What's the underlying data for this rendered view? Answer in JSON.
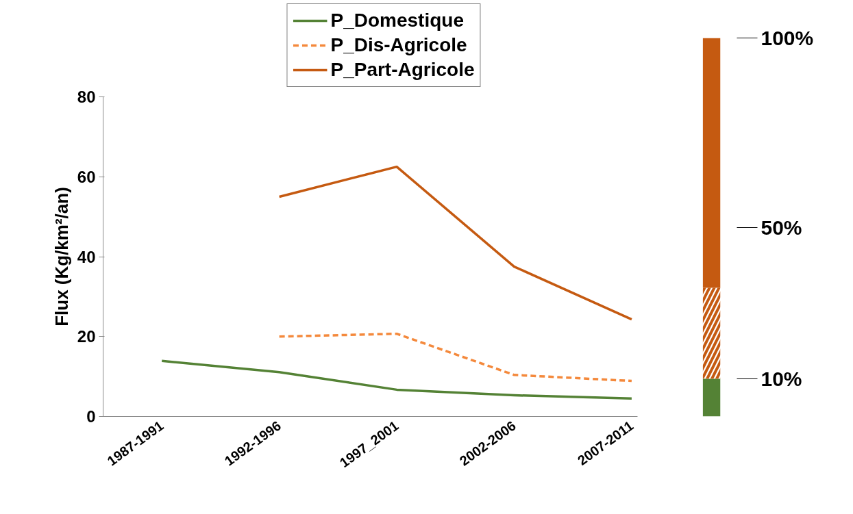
{
  "chart_data": [
    {
      "type": "line",
      "ylabel": "Flux (Kg/km²/an)",
      "categories": [
        "1987-1991",
        "1992-1996",
        "1997_2001",
        "2002-2006",
        "2007-2011"
      ],
      "series": [
        {
          "name": "P_Domestique",
          "color": "#548235",
          "line_style": "solid",
          "values": [
            13.9,
            11.1,
            6.7,
            5.3,
            4.5
          ]
        },
        {
          "name": "P_Dis-Agricole",
          "color": "#f4893c",
          "line_style": "dashed",
          "values": [
            null,
            20.0,
            20.7,
            10.4,
            8.9
          ]
        },
        {
          "name": "P_Part-Agricole",
          "color": "#c55a11",
          "line_style": "solid",
          "values": [
            null,
            55.0,
            62.5,
            37.5,
            24.3
          ]
        }
      ],
      "ylim": [
        0,
        80
      ],
      "yticks": [
        0,
        20,
        40,
        60,
        80
      ],
      "grid": false,
      "legend": "top"
    },
    {
      "type": "bar",
      "stacked": true,
      "categories": [
        null
      ],
      "series": [
        {
          "color": "#548235",
          "line_style": "solid",
          "values": [
            10
          ]
        },
        {
          "color": "#c55a11",
          "line_style": "dashed",
          "values": [
            24
          ]
        },
        {
          "color": "#c55a11",
          "line_style": "solid",
          "values": [
            66
          ]
        }
      ],
      "ylim": [
        0,
        100
      ],
      "yticks": [
        {
          "value": 10,
          "label": "10%"
        },
        {
          "value": 50,
          "label": "50%"
        },
        {
          "value": 100,
          "label": "100%"
        }
      ],
      "tick_labels": "y",
      "grid": false
    }
  ]
}
